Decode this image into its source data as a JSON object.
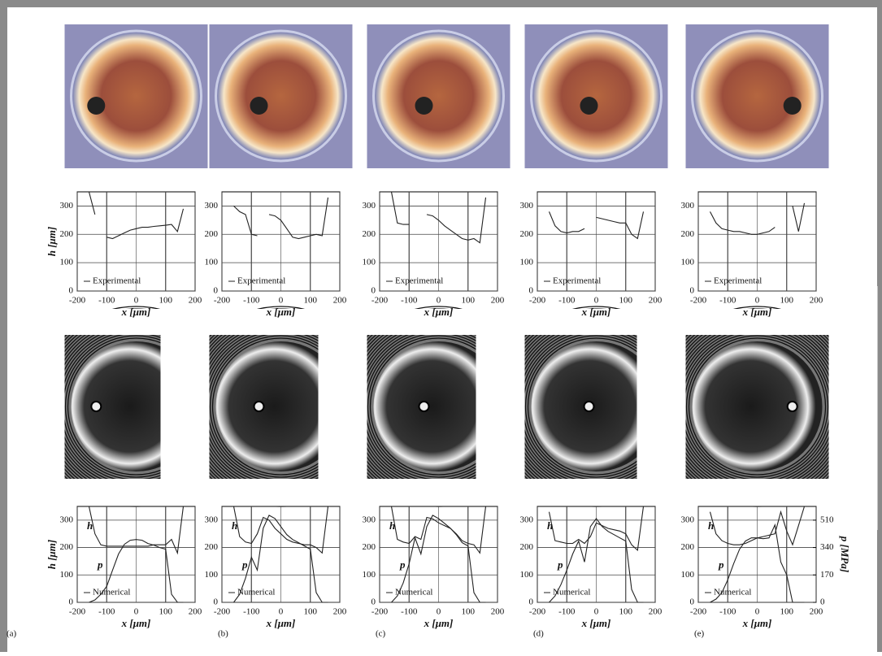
{
  "panels": [
    "(a)",
    "(b)",
    "(c)",
    "(d)",
    "(e)"
  ],
  "chart_data": [
    {
      "type": "line",
      "ylabel": "h [μm]",
      "xlabel": "x [μm]",
      "xlim": [
        -200,
        200
      ],
      "ylim": [
        0,
        350
      ],
      "xticks": [
        -200,
        -100,
        0,
        100,
        200
      ],
      "yticks": [
        0,
        100,
        200,
        300
      ],
      "grid": true,
      "legend_loc": "lower left",
      "x": [
        -160,
        -140,
        -120,
        -100,
        -80,
        -60,
        -40,
        -20,
        0,
        20,
        40,
        60,
        80,
        100,
        120,
        140,
        160
      ],
      "series": [
        {
          "name": "Experimental",
          "color": "#222222",
          "values": [
            350,
            270,
            null,
            190,
            185,
            195,
            205,
            215,
            220,
            225,
            225,
            228,
            230,
            232,
            235,
            210,
            290
          ]
        }
      ]
    },
    {
      "type": "line",
      "xlabel": "x [μm]",
      "xlim": [
        -200,
        200
      ],
      "ylim": [
        0,
        350
      ],
      "xticks": [
        -200,
        -100,
        0,
        100,
        200
      ],
      "yticks": [
        0,
        100,
        200,
        300
      ],
      "grid": true,
      "legend_loc": "lower left",
      "x": [
        -160,
        -140,
        -120,
        -100,
        -80,
        -60,
        -40,
        -20,
        0,
        20,
        40,
        60,
        80,
        100,
        120,
        140,
        160
      ],
      "series": [
        {
          "name": "Experimental",
          "color": "#222222",
          "values": [
            300,
            280,
            270,
            200,
            195,
            null,
            270,
            265,
            250,
            220,
            190,
            185,
            190,
            195,
            200,
            195,
            330
          ]
        }
      ]
    },
    {
      "type": "line",
      "xlabel": "x [μm]",
      "xlim": [
        -200,
        200
      ],
      "ylim": [
        0,
        350
      ],
      "xticks": [
        -200,
        -100,
        0,
        100,
        200
      ],
      "yticks": [
        0,
        100,
        200,
        300
      ],
      "grid": true,
      "legend_loc": "lower left",
      "x": [
        -160,
        -140,
        -120,
        -100,
        -80,
        -60,
        -40,
        -20,
        0,
        20,
        40,
        60,
        80,
        100,
        120,
        140,
        160
      ],
      "series": [
        {
          "name": "Experimental",
          "color": "#222222",
          "values": [
            350,
            240,
            235,
            235,
            null,
            null,
            270,
            265,
            250,
            230,
            215,
            200,
            185,
            180,
            185,
            170,
            330
          ]
        }
      ]
    },
    {
      "type": "line",
      "xlabel": "x [μm]",
      "xlim": [
        -200,
        200
      ],
      "ylim": [
        0,
        350
      ],
      "xticks": [
        -200,
        -100,
        0,
        100,
        200
      ],
      "yticks": [
        0,
        100,
        200,
        300
      ],
      "grid": true,
      "legend_loc": "lower left",
      "x": [
        -160,
        -140,
        -120,
        -100,
        -80,
        -60,
        -40,
        -20,
        0,
        20,
        40,
        60,
        80,
        100,
        120,
        140,
        160
      ],
      "series": [
        {
          "name": "Experimental",
          "color": "#222222",
          "values": [
            280,
            230,
            210,
            205,
            210,
            210,
            220,
            null,
            260,
            255,
            250,
            245,
            240,
            240,
            200,
            185,
            280
          ]
        }
      ]
    },
    {
      "type": "line",
      "xlabel": "x [μm]",
      "xlim": [
        -200,
        200
      ],
      "ylim": [
        0,
        350
      ],
      "xticks": [
        -200,
        -100,
        0,
        100,
        200
      ],
      "yticks": [
        0,
        100,
        200,
        300
      ],
      "grid": true,
      "legend_loc": "lower left",
      "x": [
        -160,
        -140,
        -120,
        -100,
        -80,
        -60,
        -40,
        -20,
        0,
        20,
        40,
        60,
        80,
        100,
        120,
        140,
        160
      ],
      "series": [
        {
          "name": "Experimental",
          "color": "#222222",
          "values": [
            280,
            240,
            220,
            215,
            210,
            210,
            205,
            200,
            200,
            205,
            210,
            225,
            null,
            null,
            300,
            210,
            310
          ]
        }
      ]
    },
    {
      "type": "line",
      "ylabel": "h [μm]",
      "xlabel": "x [μm]",
      "xlim": [
        -200,
        200
      ],
      "ylim": [
        0,
        350
      ],
      "y2lim": [
        0,
        595
      ],
      "xticks": [
        -200,
        -100,
        0,
        100,
        200
      ],
      "yticks": [
        0,
        100,
        200,
        300
      ],
      "grid": true,
      "legend_label": "Numerical",
      "legend_loc": "lower left",
      "x": [
        -160,
        -140,
        -120,
        -100,
        -80,
        -60,
        -40,
        -20,
        0,
        20,
        40,
        60,
        80,
        100,
        120,
        140,
        160
      ],
      "series": [
        {
          "name": "h",
          "color": "#222222",
          "values": [
            350,
            250,
            210,
            205,
            205,
            205,
            205,
            205,
            205,
            205,
            205,
            210,
            210,
            210,
            230,
            180,
            350
          ]
        },
        {
          "name": "p",
          "axis": "y2",
          "color": "#222222",
          "values": [
            0,
            15,
            50,
            100,
            200,
            300,
            360,
            385,
            390,
            385,
            365,
            355,
            340,
            330,
            50,
            0,
            0
          ]
        }
      ]
    },
    {
      "type": "line",
      "xlabel": "x [μm]",
      "xlim": [
        -200,
        200
      ],
      "ylim": [
        0,
        350
      ],
      "y2lim": [
        0,
        595
      ],
      "xticks": [
        -200,
        -100,
        0,
        100,
        200
      ],
      "yticks": [
        0,
        100,
        200,
        300
      ],
      "grid": true,
      "legend_label": "Numerical",
      "legend_loc": "lower left",
      "x": [
        -160,
        -140,
        -120,
        -100,
        -80,
        -60,
        -40,
        -20,
        0,
        20,
        40,
        60,
        80,
        100,
        120,
        140,
        160
      ],
      "series": [
        {
          "name": "h",
          "color": "#222222",
          "values": [
            350,
            240,
            220,
            215,
            250,
            310,
            300,
            270,
            250,
            230,
            220,
            215,
            210,
            210,
            200,
            180,
            350
          ]
        },
        {
          "name": "p",
          "axis": "y2",
          "color": "#222222",
          "values": [
            0,
            50,
            150,
            280,
            200,
            460,
            540,
            520,
            470,
            420,
            390,
            370,
            350,
            330,
            60,
            0,
            0
          ]
        }
      ]
    },
    {
      "type": "line",
      "xlabel": "x [μm]",
      "xlim": [
        -200,
        200
      ],
      "ylim": [
        0,
        350
      ],
      "y2lim": [
        0,
        595
      ],
      "xticks": [
        -200,
        -100,
        0,
        100,
        200
      ],
      "yticks": [
        0,
        100,
        200,
        300
      ],
      "grid": true,
      "legend_label": "Numerical",
      "legend_loc": "lower left",
      "x": [
        -160,
        -140,
        -120,
        -100,
        -80,
        -60,
        -40,
        -20,
        0,
        20,
        40,
        60,
        80,
        100,
        120,
        140,
        160
      ],
      "series": [
        {
          "name": "h",
          "color": "#222222",
          "values": [
            350,
            230,
            220,
            215,
            240,
            230,
            310,
            305,
            290,
            280,
            270,
            250,
            225,
            215,
            210,
            180,
            350
          ]
        },
        {
          "name": "p",
          "axis": "y2",
          "color": "#222222",
          "values": [
            0,
            40,
            120,
            240,
            400,
            300,
            470,
            540,
            520,
            490,
            460,
            420,
            370,
            350,
            60,
            0,
            0
          ]
        }
      ]
    },
    {
      "type": "line",
      "xlabel": "x [μm]",
      "xlim": [
        -200,
        200
      ],
      "ylim": [
        0,
        350
      ],
      "y2lim": [
        0,
        595
      ],
      "xticks": [
        -200,
        -100,
        0,
        100,
        200
      ],
      "yticks": [
        0,
        100,
        200,
        300
      ],
      "grid": true,
      "legend_label": "Numerical",
      "legend_loc": "lower left",
      "x": [
        -160,
        -140,
        -120,
        -100,
        -80,
        -60,
        -40,
        -20,
        0,
        20,
        40,
        60,
        80,
        100,
        120,
        140,
        160
      ],
      "series": [
        {
          "name": "h",
          "color": "#222222",
          "values": [
            330,
            225,
            220,
            215,
            215,
            230,
            215,
            240,
            290,
            280,
            270,
            265,
            260,
            250,
            210,
            190,
            350
          ]
        },
        {
          "name": "p",
          "axis": "y2",
          "color": "#222222",
          "values": [
            0,
            40,
            110,
            200,
            300,
            380,
            250,
            470,
            520,
            470,
            440,
            420,
            400,
            380,
            80,
            0,
            0
          ]
        }
      ]
    },
    {
      "type": "line",
      "xlabel": "x [μm]",
      "y2label": "p [MPa]",
      "xlim": [
        -200,
        200
      ],
      "ylim": [
        0,
        350
      ],
      "y2lim": [
        0,
        595
      ],
      "xticks": [
        -200,
        -100,
        0,
        100,
        200
      ],
      "yticks": [
        0,
        100,
        200,
        300
      ],
      "y2ticks": [
        0,
        170,
        340,
        510
      ],
      "grid": true,
      "legend_label": "Numerical",
      "legend_loc": "lower left",
      "x": [
        -160,
        -140,
        -120,
        -100,
        -80,
        -60,
        -40,
        -20,
        0,
        20,
        40,
        60,
        80,
        100,
        120,
        140,
        160
      ],
      "series": [
        {
          "name": "h",
          "color": "#222222",
          "values": [
            330,
            250,
            225,
            215,
            210,
            210,
            215,
            225,
            235,
            240,
            245,
            250,
            330,
            260,
            210,
            280,
            350
          ]
        },
        {
          "name": "p",
          "axis": "y2",
          "color": "#222222",
          "values": [
            0,
            20,
            60,
            140,
            240,
            330,
            380,
            400,
            400,
            395,
            400,
            480,
            250,
            170,
            0,
            0,
            0
          ]
        }
      ]
    }
  ]
}
